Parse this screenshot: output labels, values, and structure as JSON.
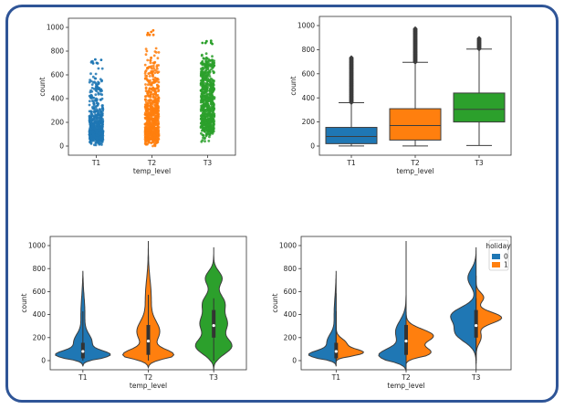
{
  "chart_data": [
    {
      "type": "scatter",
      "kind": "strip",
      "categories": [
        "T1",
        "T2",
        "T3"
      ],
      "xlabel": "temp_level",
      "ylabel": "count",
      "ylim": [
        0,
        1000
      ],
      "yticks": [
        0,
        200,
        400,
        600,
        800,
        1000
      ],
      "colors": [
        "#1f77b4",
        "#ff7f0e",
        "#2ca02c"
      ],
      "max": [
        735,
        975,
        895
      ],
      "median": [
        80,
        170,
        305
      ]
    },
    {
      "type": "box",
      "categories": [
        "T1",
        "T2",
        "T3"
      ],
      "xlabel": "temp_level",
      "ylabel": "count",
      "ylim": [
        0,
        1000
      ],
      "yticks": [
        0,
        200,
        400,
        600,
        800,
        1000
      ],
      "colors": [
        "#1f77b4",
        "#ff7f0e",
        "#2ca02c"
      ],
      "boxes": [
        {
          "min": 1,
          "q1": 20,
          "median": 80,
          "q3": 155,
          "whisker_high": 360,
          "max": 735
        },
        {
          "min": 1,
          "q1": 50,
          "median": 170,
          "q3": 310,
          "whisker_high": 695,
          "max": 975
        },
        {
          "min": 5,
          "q1": 200,
          "median": 305,
          "q3": 440,
          "whisker_high": 805,
          "max": 895
        }
      ]
    },
    {
      "type": "violin",
      "categories": [
        "T1",
        "T2",
        "T3"
      ],
      "xlabel": "temp_level",
      "ylabel": "count",
      "ylim": [
        0,
        1000
      ],
      "yticks": [
        0,
        200,
        400,
        600,
        800,
        1000
      ],
      "colors": [
        "#1f77b4",
        "#ff7f0e",
        "#2ca02c"
      ],
      "median": [
        80,
        170,
        305
      ],
      "q1": [
        20,
        50,
        200
      ],
      "q3": [
        155,
        310,
        440
      ],
      "range": [
        [
          -50,
          780
        ],
        [
          -60,
          1040
        ],
        [
          -90,
          985
        ]
      ]
    },
    {
      "type": "violin",
      "kind": "split",
      "categories": [
        "T1",
        "T2",
        "T3"
      ],
      "xlabel": "temp_level",
      "ylabel": "count",
      "ylim": [
        0,
        1000
      ],
      "yticks": [
        0,
        200,
        400,
        600,
        800,
        1000
      ],
      "legend": {
        "title": "holiday",
        "entries": [
          "0",
          "1"
        ],
        "position": "top-right"
      },
      "series_colors": [
        "#1f77b4",
        "#ff7f0e"
      ],
      "median": [
        80,
        170,
        305
      ],
      "q1": [
        20,
        50,
        200
      ],
      "q3": [
        155,
        310,
        440
      ],
      "range": [
        [
          -50,
          780
        ],
        [
          -90,
          1040
        ],
        [
          -80,
          985
        ]
      ]
    }
  ]
}
